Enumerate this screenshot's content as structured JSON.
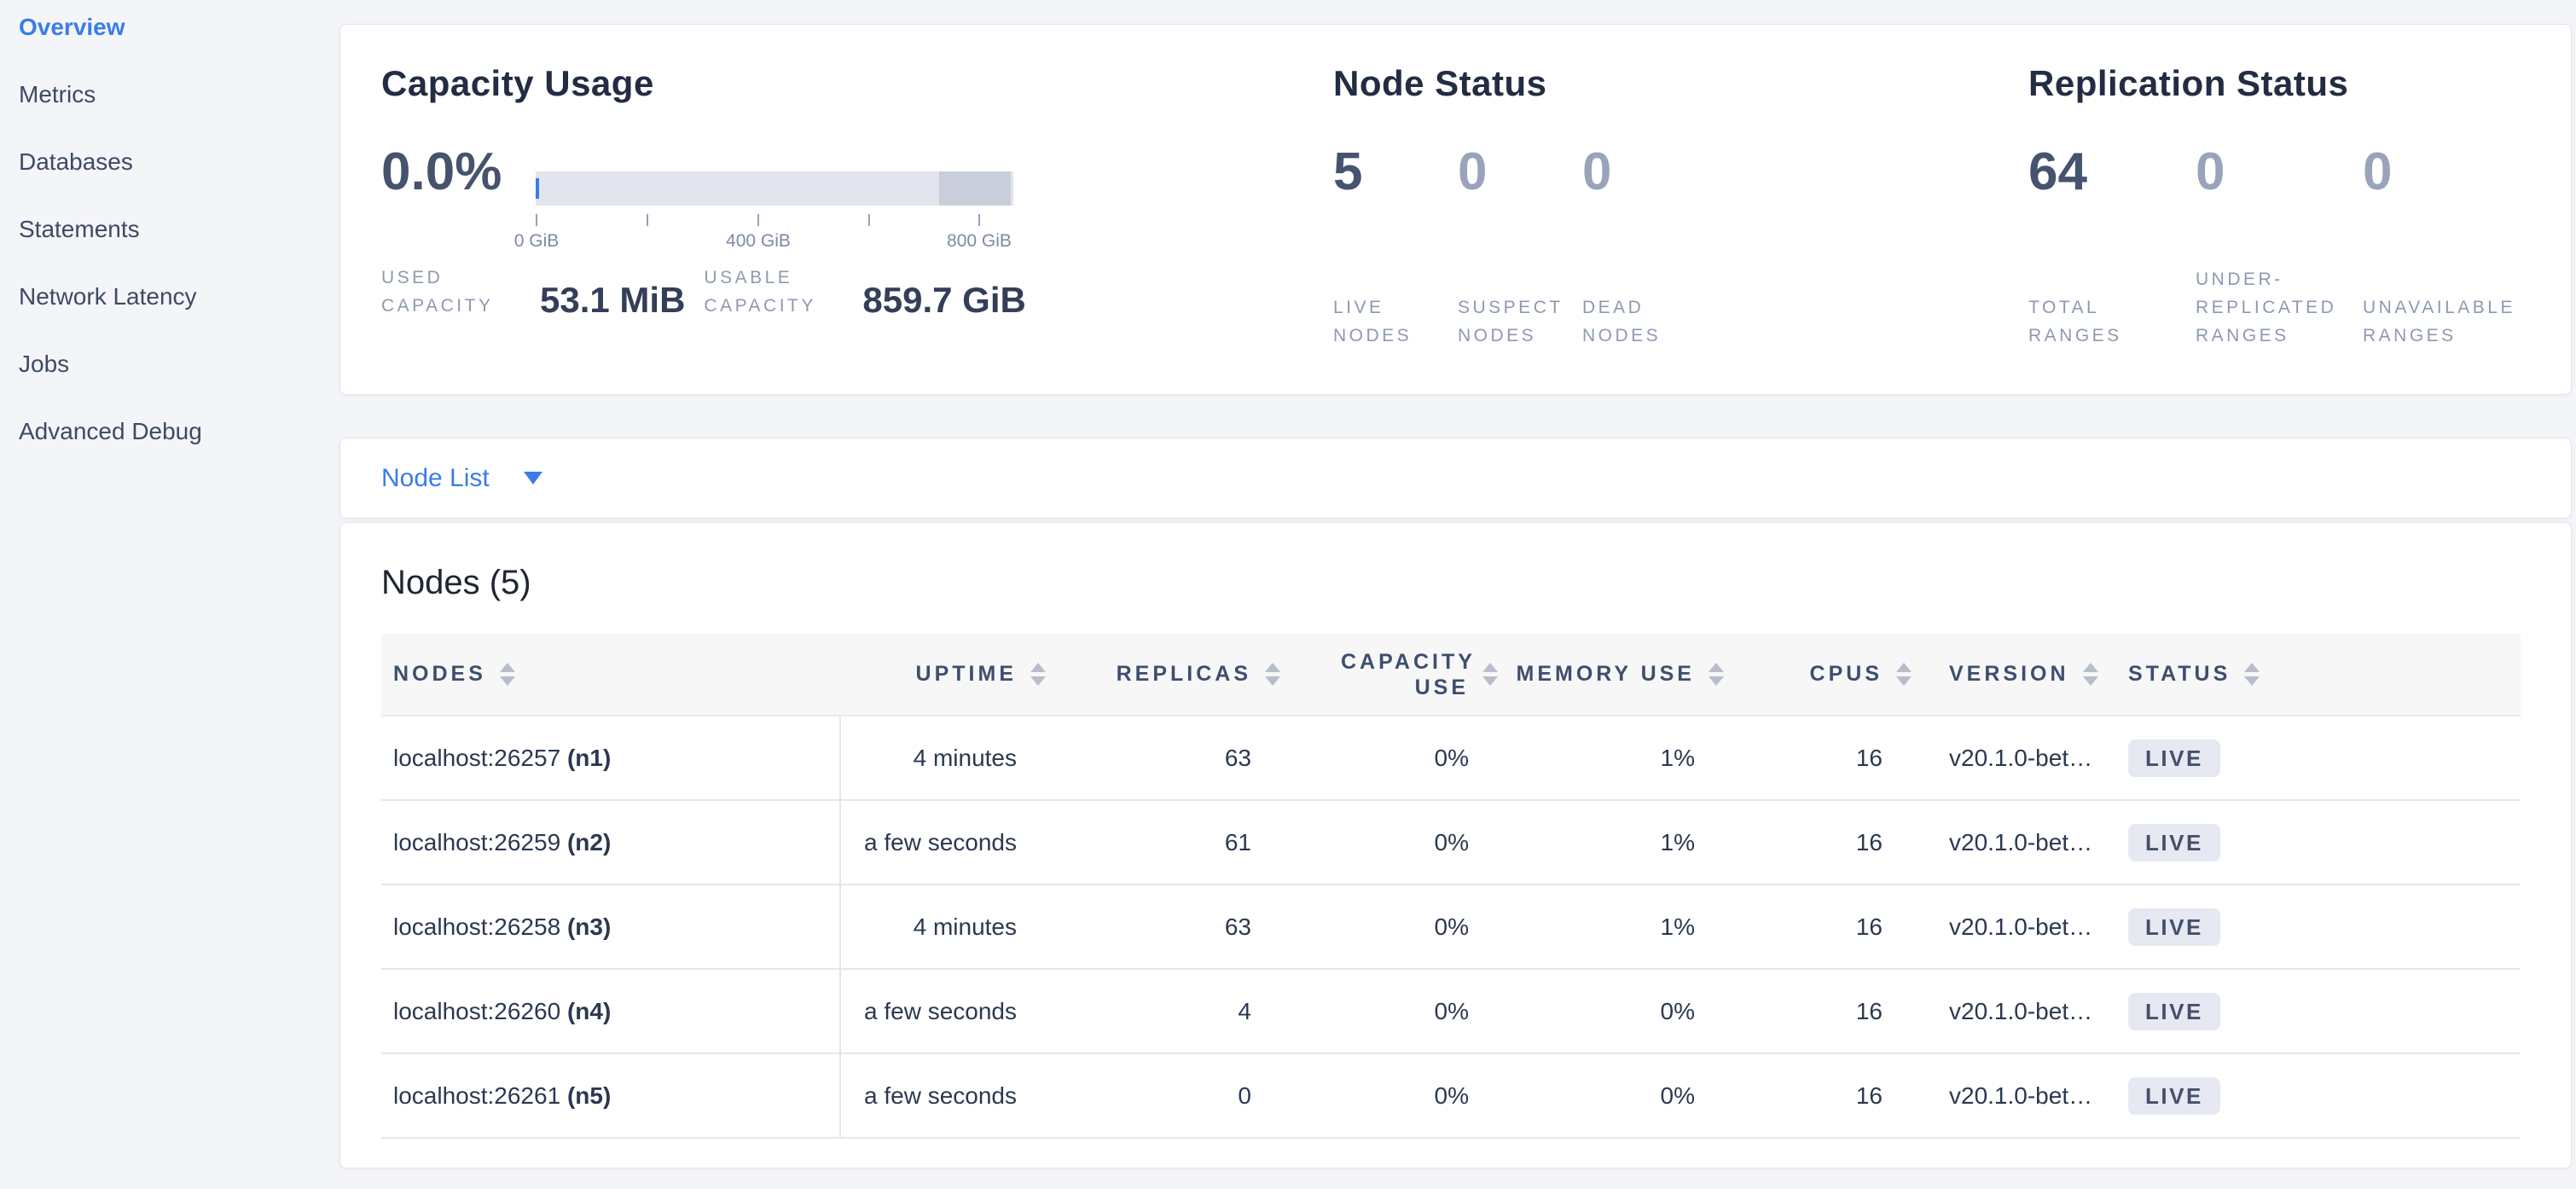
{
  "colors": {
    "accent-blue": "#3b7ce8",
    "bar-track": "#e2e5ee",
    "bar-other": "#c9cedb",
    "badge-bg": "#e6e9f2",
    "row-border": "#e5e6ed"
  },
  "sidebar": {
    "items": [
      {
        "label": "Overview",
        "active": true
      },
      {
        "label": "Metrics",
        "active": false
      },
      {
        "label": "Databases",
        "active": false
      },
      {
        "label": "Statements",
        "active": false
      },
      {
        "label": "Network Latency",
        "active": false
      },
      {
        "label": "Jobs",
        "active": false
      },
      {
        "label": "Advanced Debug",
        "active": false
      }
    ]
  },
  "summary": {
    "capacity": {
      "title": "Capacity Usage",
      "percent": "0.0%",
      "axis_labels": [
        "0 GiB",
        "400 GiB",
        "800 GiB"
      ],
      "stats": [
        {
          "label": "USED CAPACITY",
          "value": "53.1 MiB"
        },
        {
          "label": "USABLE CAPACITY",
          "value": "859.7 GiB"
        }
      ]
    },
    "node_status": {
      "title": "Node Status",
      "stats": [
        {
          "value": "5",
          "label": "LIVE NODES",
          "muted": false
        },
        {
          "value": "0",
          "label": "SUSPECT NODES",
          "muted": true
        },
        {
          "value": "0",
          "label": "DEAD NODES",
          "muted": true
        }
      ]
    },
    "replication": {
      "title": "Replication Status",
      "stats": [
        {
          "value": "64",
          "label": "TOTAL RANGES",
          "muted": false
        },
        {
          "value": "0",
          "label": "UNDER-REPLICATED RANGES",
          "muted": true
        },
        {
          "value": "0",
          "label": "UNAVAILABLE RANGES",
          "muted": true
        }
      ]
    }
  },
  "node_list": {
    "label": "Node List"
  },
  "nodes_table": {
    "title": "Nodes (5)",
    "columns": [
      {
        "label": "NODES",
        "align": "left"
      },
      {
        "label": "UPTIME",
        "align": "right"
      },
      {
        "label": "REPLICAS",
        "align": "right"
      },
      {
        "label": "CAPACITY USE",
        "align": "right"
      },
      {
        "label": "MEMORY USE",
        "align": "right"
      },
      {
        "label": "CPUS",
        "align": "right"
      },
      {
        "label": "VERSION",
        "align": "left"
      },
      {
        "label": "STATUS",
        "align": "left"
      }
    ],
    "rows": [
      {
        "address": "localhost:26257",
        "id": "(n1)",
        "uptime": "4 minutes",
        "replicas": "63",
        "capacity_use": "0%",
        "memory_use": "1%",
        "cpus": "16",
        "version": "v20.1.0-bet…",
        "status": "LIVE"
      },
      {
        "address": "localhost:26259",
        "id": "(n2)",
        "uptime": "a few seconds",
        "replicas": "61",
        "capacity_use": "0%",
        "memory_use": "1%",
        "cpus": "16",
        "version": "v20.1.0-bet…",
        "status": "LIVE"
      },
      {
        "address": "localhost:26258",
        "id": "(n3)",
        "uptime": "4 minutes",
        "replicas": "63",
        "capacity_use": "0%",
        "memory_use": "1%",
        "cpus": "16",
        "version": "v20.1.0-bet…",
        "status": "LIVE"
      },
      {
        "address": "localhost:26260",
        "id": "(n4)",
        "uptime": "a few seconds",
        "replicas": "4",
        "capacity_use": "0%",
        "memory_use": "0%",
        "cpus": "16",
        "version": "v20.1.0-bet…",
        "status": "LIVE"
      },
      {
        "address": "localhost:26261",
        "id": "(n5)",
        "uptime": "a few seconds",
        "replicas": "0",
        "capacity_use": "0%",
        "memory_use": "0%",
        "cpus": "16",
        "version": "v20.1.0-bet…",
        "status": "LIVE"
      }
    ]
  }
}
